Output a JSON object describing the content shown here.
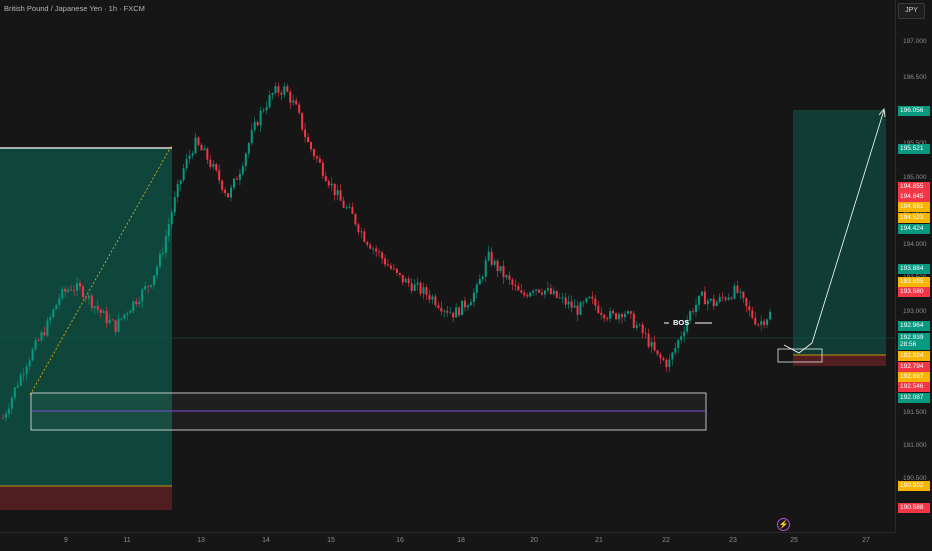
{
  "header": {
    "title": "British Pound / Japanese Yen · 1h · FXCM"
  },
  "price_scale": {
    "currency": "JPY",
    "ticks": [
      "197.000",
      "196.500",
      "196.000",
      "195.500",
      "195.000",
      "194.500",
      "194.000",
      "193.500",
      "193.000",
      "192.500",
      "192.000",
      "191.500",
      "191.000",
      "190.500"
    ],
    "badges": [
      {
        "text": "196.056",
        "color": "#089981"
      },
      {
        "text": "195.521",
        "color": "#089981"
      },
      {
        "text": "194.855",
        "color": "#f23645"
      },
      {
        "text": "194.845",
        "color": "#f23645"
      },
      {
        "text": "194.681",
        "color": "#f7b500"
      },
      {
        "text": "194.523",
        "color": "#f7b500"
      },
      {
        "text": "194.424",
        "color": "#089981"
      },
      {
        "text": "193.884",
        "color": "#089981"
      },
      {
        "text": "193.695",
        "color": "#f7b500"
      },
      {
        "text": "193.580",
        "color": "#f23645"
      },
      {
        "text": "192.964",
        "color": "#089981"
      },
      {
        "text": "192.939",
        "color": "#089981"
      },
      {
        "text": "28:56",
        "color": "#089981"
      },
      {
        "text": "192.924",
        "color": "#f7b500"
      },
      {
        "text": "192.794",
        "color": "#f23645"
      },
      {
        "text": "192.697",
        "color": "#f7b500"
      },
      {
        "text": "192.546",
        "color": "#f23645"
      },
      {
        "text": "192.087",
        "color": "#089981"
      },
      {
        "text": "190.902",
        "color": "#f7b500"
      },
      {
        "text": "190.588",
        "color": "#f23645"
      }
    ]
  },
  "time_scale": {
    "labels": [
      "9",
      "11",
      "13",
      "14",
      "15",
      "16",
      "18",
      "20",
      "21",
      "22",
      "23",
      "25",
      "27"
    ]
  },
  "annotations": {
    "bos": "BOS"
  },
  "chart_data": {
    "type": "candlestick",
    "symbol": "GBPJPY",
    "timeframe": "1h",
    "ylim": [
      190.4,
      197.4
    ],
    "close_path": [
      191.4,
      191.8,
      192.2,
      192.5,
      192.8,
      193.2,
      193.35,
      193.3,
      193.1,
      192.9,
      192.75,
      193.0,
      193.2,
      193.4,
      193.8,
      194.5,
      195.1,
      195.5,
      195.3,
      195.0,
      194.7,
      195.1,
      195.6,
      196.0,
      196.25,
      196.3,
      196.0,
      195.5,
      195.2,
      194.9,
      194.6,
      194.4,
      194.1,
      193.9,
      193.7,
      193.5,
      193.4,
      193.3,
      193.2,
      193.05,
      192.95,
      193.1,
      193.3,
      193.8,
      193.6,
      193.4,
      193.2,
      193.35,
      193.3,
      193.2,
      193.1,
      193.0,
      193.15,
      193.0,
      192.9,
      193.0,
      192.8,
      192.6,
      192.3,
      192.2,
      192.6,
      193.0,
      193.2,
      193.1,
      193.2,
      193.3,
      193.0,
      192.8,
      192.95
    ],
    "colors": {
      "up": "#089981",
      "down": "#f23645"
    }
  }
}
